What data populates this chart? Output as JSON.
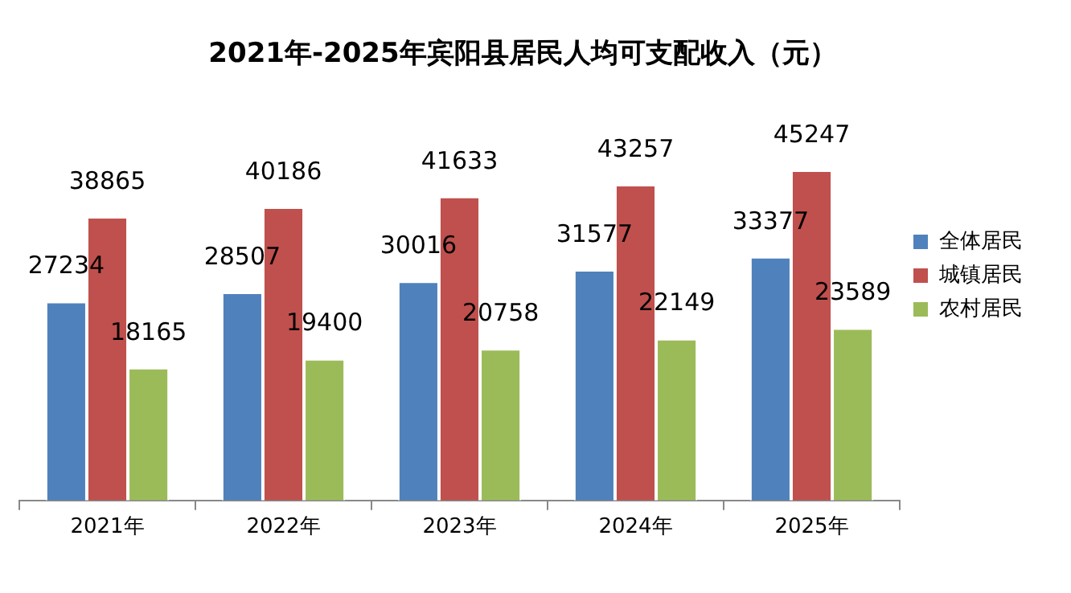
{
  "chart_data": {
    "type": "bar",
    "title": "2021年-2025年宾阳县居民人均可支配收入（元）",
    "categories": [
      "2021年",
      "2022年",
      "2023年",
      "2024年",
      "2025年"
    ],
    "series": [
      {
        "name": "全体居民",
        "color": "#4f81bd",
        "values": [
          27234,
          28507,
          30016,
          31577,
          33377
        ]
      },
      {
        "name": "城镇居民",
        "color": "#c0504d",
        "values": [
          38865,
          40186,
          41633,
          43257,
          45247
        ]
      },
      {
        "name": "农村居民",
        "color": "#9bbb59",
        "values": [
          18165,
          19400,
          20758,
          22149,
          23589
        ]
      }
    ],
    "relative": false,
    "data_labels": true,
    "legend": "right",
    "grid": false
  }
}
